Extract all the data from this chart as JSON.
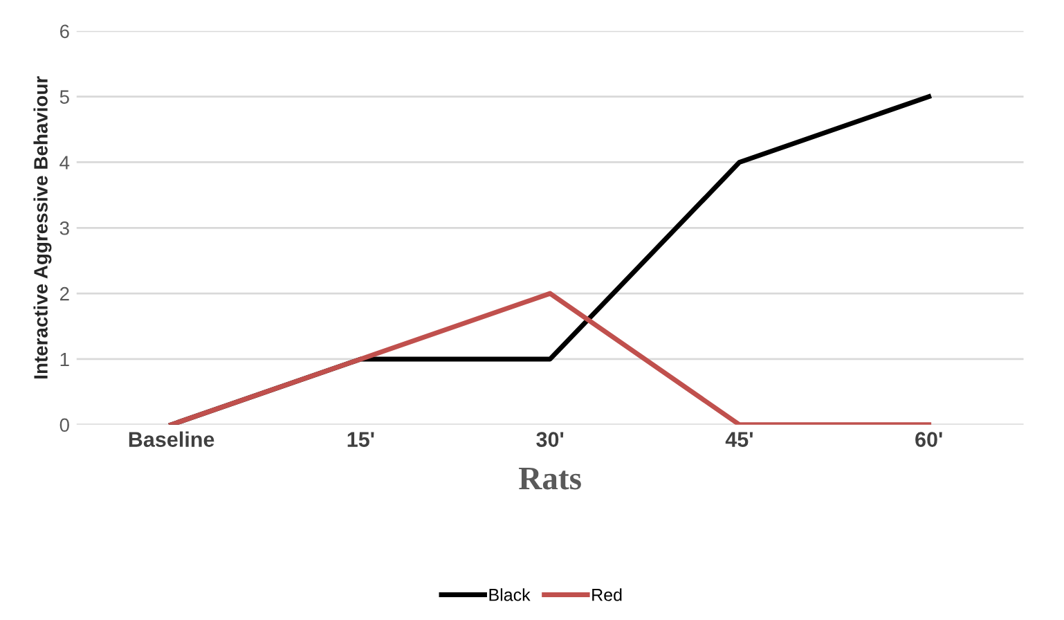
{
  "chart_data": {
    "type": "line",
    "xlabel": "Rats",
    "ylabel": "Interactive Aggressive Behaviour",
    "categories": [
      "Baseline",
      "15'",
      "30'",
      "45'",
      "60'"
    ],
    "series": [
      {
        "name": "Black",
        "color": "#000000",
        "values": [
          0,
          1,
          1,
          4,
          5
        ]
      },
      {
        "name": "Red",
        "color": "#c0504d",
        "values": [
          0,
          1,
          2,
          0,
          0
        ]
      }
    ],
    "ylim": [
      0,
      6
    ],
    "yticks": [
      0,
      1,
      2,
      3,
      4,
      5,
      6
    ],
    "grid": "y",
    "legend": "bottom",
    "marker": "none",
    "line_style": "solid"
  }
}
